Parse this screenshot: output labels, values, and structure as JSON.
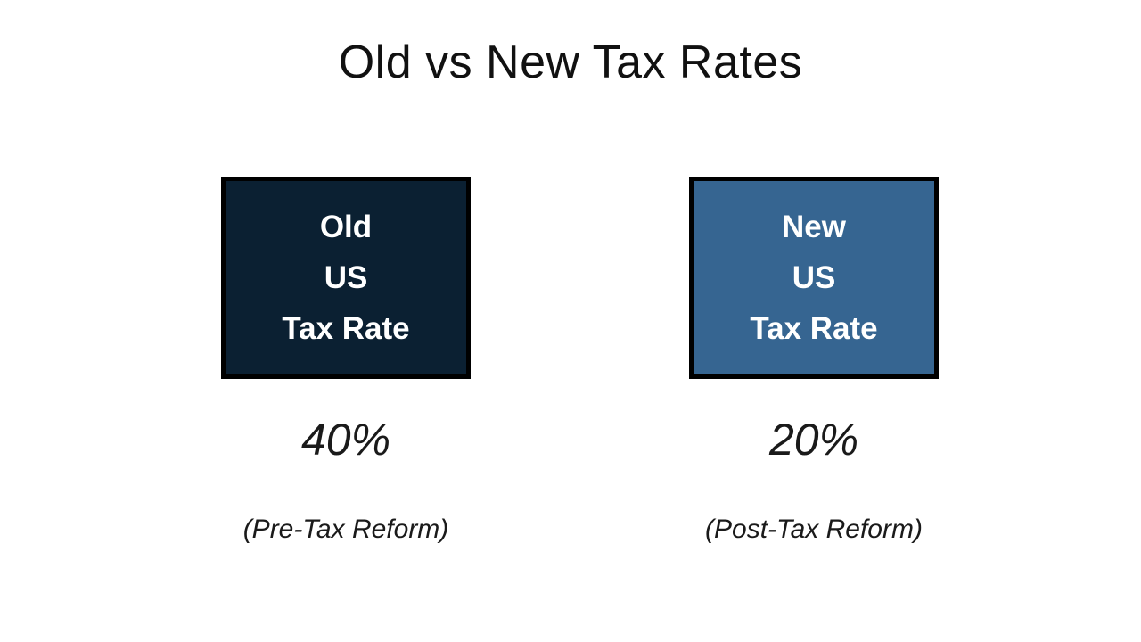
{
  "title": "Old vs New Tax Rates",
  "comparison": {
    "old": {
      "box_lines": [
        "Old",
        "US",
        "Tax Rate"
      ],
      "rate": "40%",
      "caption": "(Pre-Tax Reform)",
      "box_color": "#0b2032"
    },
    "new": {
      "box_lines": [
        "New",
        "US",
        "Tax Rate"
      ],
      "rate": "20%",
      "caption": "(Post-Tax Reform)",
      "box_color": "#366591"
    }
  },
  "colors": {
    "background": "#ffffff",
    "box_border": "#000000",
    "box_text": "#ffffff",
    "body_text": "#1a1a1a",
    "old_box_fill": "#0b2032",
    "new_box_fill": "#366591"
  }
}
